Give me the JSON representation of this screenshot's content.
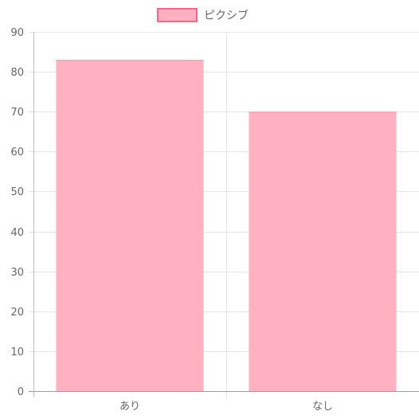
{
  "chart_data": {
    "type": "bar",
    "categories": [
      "あり",
      "なし"
    ],
    "series": [
      {
        "name": "ピクシブ",
        "values": [
          83,
          70
        ],
        "fill": "#ffb1c1",
        "stroke": "#ff6384"
      }
    ],
    "ylim": [
      0,
      90
    ],
    "yticks": [
      0,
      10,
      20,
      30,
      40,
      50,
      60,
      70,
      80,
      90
    ],
    "grid": true,
    "legend": "top-center"
  }
}
